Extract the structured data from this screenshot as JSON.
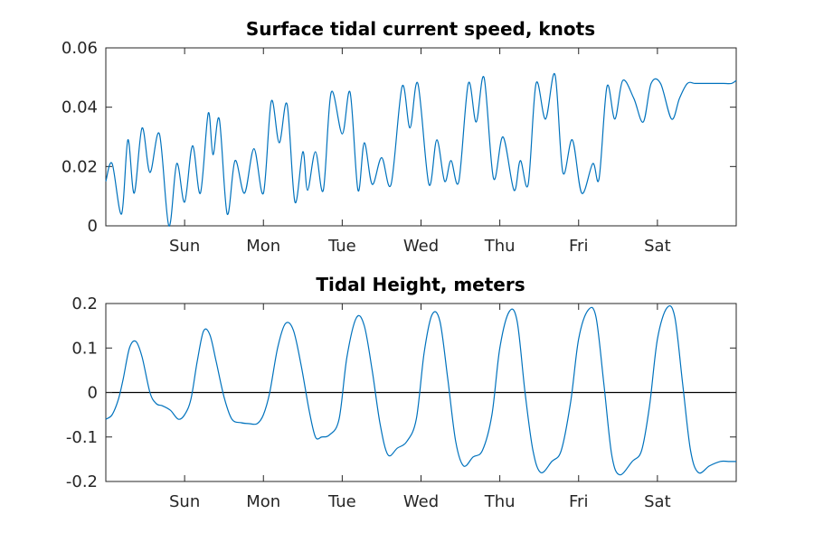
{
  "colors": {
    "series": "#0072bd",
    "axes": "#262626",
    "zero_line": "#000000"
  },
  "chart_data": [
    {
      "type": "line",
      "title": "Surface tidal current speed, knots",
      "xlabel": "",
      "ylabel": "",
      "xlim": [
        0,
        8
      ],
      "ylim": [
        0,
        0.06
      ],
      "x_ticks": [
        1,
        2,
        3,
        4,
        5,
        6,
        7
      ],
      "x_tick_labels": [
        "Sun",
        "Mon",
        "Tue",
        "Wed",
        "Thu",
        "Fri",
        "Sat"
      ],
      "y_ticks": [
        0,
        0.02,
        0.04,
        0.06
      ],
      "y_tick_labels": [
        "0",
        "0.02",
        "0.04",
        "0.06"
      ],
      "series": [
        {
          "name": "current speed",
          "x": [
            0,
            0.08,
            0.2,
            0.28,
            0.36,
            0.46,
            0.56,
            0.68,
            0.8,
            0.9,
            1.0,
            1.1,
            1.2,
            1.3,
            1.36,
            1.44,
            1.54,
            1.64,
            1.76,
            1.88,
            2.0,
            2.1,
            2.2,
            2.3,
            2.4,
            2.5,
            2.56,
            2.66,
            2.76,
            2.86,
            3.0,
            3.1,
            3.2,
            3.28,
            3.38,
            3.5,
            3.62,
            3.76,
            3.86,
            3.96,
            4.1,
            4.2,
            4.3,
            4.38,
            4.48,
            4.6,
            4.7,
            4.8,
            4.92,
            5.04,
            5.18,
            5.26,
            5.36,
            5.46,
            5.58,
            5.7,
            5.8,
            5.92,
            6.04,
            6.18,
            6.26,
            6.36,
            6.46,
            6.56,
            6.7,
            6.82,
            6.92,
            7.04,
            7.18,
            7.28,
            7.38,
            7.48,
            7.6,
            7.74,
            7.84,
            7.94,
            8.0
          ],
          "y": [
            0.015,
            0.021,
            0.004,
            0.029,
            0.011,
            0.033,
            0.018,
            0.031,
            0.0,
            0.021,
            0.008,
            0.027,
            0.011,
            0.038,
            0.024,
            0.036,
            0.004,
            0.022,
            0.011,
            0.026,
            0.011,
            0.042,
            0.028,
            0.041,
            0.008,
            0.025,
            0.012,
            0.025,
            0.012,
            0.045,
            0.031,
            0.045,
            0.012,
            0.028,
            0.014,
            0.023,
            0.014,
            0.047,
            0.033,
            0.048,
            0.014,
            0.029,
            0.015,
            0.022,
            0.015,
            0.048,
            0.035,
            0.05,
            0.016,
            0.03,
            0.012,
            0.022,
            0.014,
            0.048,
            0.036,
            0.051,
            0.018,
            0.029,
            0.011,
            0.021,
            0.016,
            0.047,
            0.036,
            0.049,
            0.043,
            0.035,
            0.048,
            0.048,
            0.036,
            0.043,
            0.048,
            0.048,
            0.048,
            0.048,
            0.048,
            0.048,
            0.049
          ]
        }
      ]
    },
    {
      "type": "line",
      "title": "Tidal Height, meters",
      "xlabel": "",
      "ylabel": "",
      "xlim": [
        0,
        8
      ],
      "ylim": [
        -0.2,
        0.2
      ],
      "zero_line": true,
      "x_ticks": [
        1,
        2,
        3,
        4,
        5,
        6,
        7
      ],
      "x_tick_labels": [
        "Sun",
        "Mon",
        "Tue",
        "Wed",
        "Thu",
        "Fri",
        "Sat"
      ],
      "y_ticks": [
        -0.2,
        -0.1,
        0,
        0.1,
        0.2
      ],
      "y_tick_labels": [
        "-0.2",
        "-0.1",
        "0",
        "0.1",
        "0.2"
      ],
      "series": [
        {
          "name": "tidal height",
          "x": [
            0,
            0.08,
            0.16,
            0.22,
            0.3,
            0.38,
            0.46,
            0.56,
            0.64,
            0.72,
            0.82,
            0.92,
            1.0,
            1.08,
            1.16,
            1.24,
            1.32,
            1.4,
            1.5,
            1.6,
            1.72,
            1.82,
            1.92,
            2.0,
            2.08,
            2.18,
            2.28,
            2.38,
            2.48,
            2.58,
            2.66,
            2.74,
            2.84,
            2.96,
            3.06,
            3.18,
            3.28,
            3.38,
            3.48,
            3.58,
            3.7,
            3.82,
            3.94,
            4.04,
            4.14,
            4.24,
            4.34,
            4.44,
            4.54,
            4.66,
            4.78,
            4.9,
            5.0,
            5.12,
            5.22,
            5.32,
            5.42,
            5.52,
            5.66,
            5.78,
            5.9,
            6.0,
            6.12,
            6.22,
            6.32,
            6.42,
            6.52,
            6.68,
            6.8,
            6.9,
            7.0,
            7.12,
            7.22,
            7.32,
            7.42,
            7.52,
            7.66,
            7.8,
            7.9,
            8.0
          ],
          "y": [
            -0.06,
            -0.05,
            -0.015,
            0.03,
            0.1,
            0.115,
            0.08,
            0.0,
            -0.025,
            -0.03,
            -0.04,
            -0.06,
            -0.05,
            -0.015,
            0.07,
            0.138,
            0.13,
            0.07,
            -0.01,
            -0.06,
            -0.068,
            -0.07,
            -0.07,
            -0.05,
            0.0,
            0.1,
            0.155,
            0.14,
            0.06,
            -0.04,
            -0.1,
            -0.1,
            -0.095,
            -0.06,
            0.08,
            0.168,
            0.15,
            0.05,
            -0.07,
            -0.14,
            -0.125,
            -0.11,
            -0.06,
            0.09,
            0.175,
            0.16,
            0.03,
            -0.11,
            -0.165,
            -0.145,
            -0.13,
            -0.05,
            0.1,
            0.182,
            0.16,
            0.0,
            -0.13,
            -0.18,
            -0.155,
            -0.13,
            -0.02,
            0.12,
            0.185,
            0.17,
            0.02,
            -0.14,
            -0.185,
            -0.155,
            -0.13,
            -0.03,
            0.12,
            0.19,
            0.17,
            0.02,
            -0.13,
            -0.18,
            -0.165,
            -0.155,
            -0.155,
            -0.155
          ]
        }
      ]
    }
  ]
}
